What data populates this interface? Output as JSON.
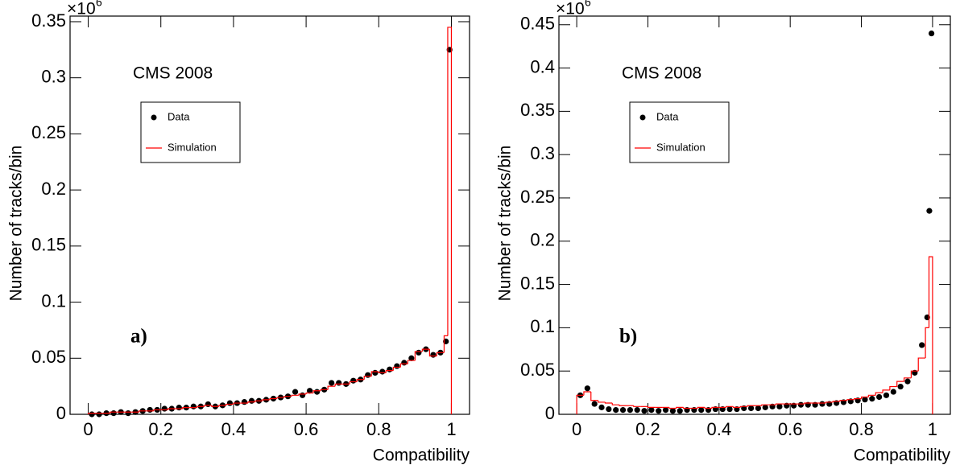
{
  "chart_data": [
    {
      "type": "histogram",
      "annotation": "CMS 2008",
      "panel_label": "a)",
      "y_label": "Number of tracks/bin",
      "x_label": "Compatibility",
      "y_multiplier": "×10",
      "y_multiplier_exponent": "6",
      "xlim": [
        -0.05,
        1.05
      ],
      "xticks": [
        0,
        0.2,
        0.4,
        0.6,
        0.8,
        1
      ],
      "ylim": [
        0,
        0.355
      ],
      "yticks": [
        0,
        0.05,
        0.1,
        0.15,
        0.2,
        0.25,
        0.3,
        0.35
      ],
      "series": [
        {
          "name": "Data",
          "color": "#000000",
          "x": [
            0.01,
            0.03,
            0.05,
            0.07,
            0.09,
            0.11,
            0.13,
            0.15,
            0.17,
            0.19,
            0.21,
            0.23,
            0.25,
            0.27,
            0.29,
            0.31,
            0.33,
            0.35,
            0.37,
            0.39,
            0.41,
            0.43,
            0.45,
            0.47,
            0.49,
            0.51,
            0.53,
            0.55,
            0.57,
            0.59,
            0.61,
            0.63,
            0.65,
            0.67,
            0.69,
            0.71,
            0.73,
            0.75,
            0.77,
            0.79,
            0.81,
            0.83,
            0.85,
            0.87,
            0.89,
            0.91,
            0.93,
            0.95,
            0.97,
            0.985,
            0.995
          ],
          "values": [
            0,
            0,
            0.001,
            0.001,
            0.002,
            0.001,
            0.002,
            0.003,
            0.004,
            0.004,
            0.005,
            0.005,
            0.006,
            0.006,
            0.007,
            0.007,
            0.009,
            0.007,
            0.008,
            0.01,
            0.01,
            0.011,
            0.012,
            0.012,
            0.013,
            0.014,
            0.015,
            0.016,
            0.02,
            0.017,
            0.021,
            0.02,
            0.022,
            0.028,
            0.028,
            0.027,
            0.03,
            0.031,
            0.035,
            0.037,
            0.038,
            0.04,
            0.043,
            0.046,
            0.05,
            0.055,
            0.058,
            0.053,
            0.055,
            0.065,
            0.325
          ]
        },
        {
          "name": "Simulation",
          "color": "#ff0000",
          "bins": [
            0,
            0.02,
            0.04,
            0.06,
            0.08,
            0.1,
            0.12,
            0.14,
            0.16,
            0.18,
            0.2,
            0.22,
            0.24,
            0.26,
            0.28,
            0.3,
            0.32,
            0.34,
            0.36,
            0.38,
            0.4,
            0.42,
            0.44,
            0.46,
            0.48,
            0.5,
            0.52,
            0.54,
            0.56,
            0.58,
            0.6,
            0.62,
            0.64,
            0.66,
            0.68,
            0.7,
            0.72,
            0.74,
            0.76,
            0.78,
            0.8,
            0.82,
            0.84,
            0.86,
            0.88,
            0.9,
            0.92,
            0.94,
            0.96,
            0.98,
            0.99,
            1
          ],
          "values": [
            0.001,
            0.001,
            0.001,
            0.002,
            0.002,
            0.002,
            0.002,
            0.003,
            0.003,
            0.004,
            0.004,
            0.005,
            0.005,
            0.006,
            0.006,
            0.007,
            0.008,
            0.007,
            0.008,
            0.009,
            0.01,
            0.01,
            0.011,
            0.012,
            0.013,
            0.014,
            0.015,
            0.016,
            0.017,
            0.018,
            0.019,
            0.021,
            0.022,
            0.025,
            0.027,
            0.027,
            0.029,
            0.031,
            0.034,
            0.038,
            0.037,
            0.039,
            0.042,
            0.045,
            0.048,
            0.056,
            0.058,
            0.052,
            0.055,
            0.07,
            0.345
          ]
        }
      ]
    },
    {
      "type": "histogram",
      "annotation": "CMS 2008",
      "panel_label": "b)",
      "y_label": "Number of tracks/bin",
      "x_label": "Compatibility",
      "y_multiplier": "×10",
      "y_multiplier_exponent": "6",
      "xlim": [
        -0.05,
        1.05
      ],
      "xticks": [
        0,
        0.2,
        0.4,
        0.6,
        0.8,
        1
      ],
      "ylim": [
        0,
        0.46
      ],
      "yticks": [
        0,
        0.05,
        0.1,
        0.15,
        0.2,
        0.25,
        0.3,
        0.35,
        0.4,
        0.45
      ],
      "series": [
        {
          "name": "Data",
          "color": "#000000",
          "x": [
            0.01,
            0.03,
            0.05,
            0.07,
            0.09,
            0.11,
            0.13,
            0.15,
            0.17,
            0.19,
            0.21,
            0.23,
            0.25,
            0.27,
            0.29,
            0.31,
            0.33,
            0.35,
            0.37,
            0.39,
            0.41,
            0.43,
            0.45,
            0.47,
            0.49,
            0.51,
            0.53,
            0.55,
            0.57,
            0.59,
            0.61,
            0.63,
            0.65,
            0.67,
            0.69,
            0.71,
            0.73,
            0.75,
            0.77,
            0.79,
            0.81,
            0.83,
            0.85,
            0.87,
            0.89,
            0.91,
            0.93,
            0.95,
            0.97,
            0.985,
            0.991,
            0.997
          ],
          "values": [
            0.022,
            0.03,
            0.012,
            0.008,
            0.006,
            0.005,
            0.005,
            0.005,
            0.005,
            0.004,
            0.005,
            0.004,
            0.005,
            0.004,
            0.004,
            0.005,
            0.005,
            0.005,
            0.005,
            0.006,
            0.006,
            0.006,
            0.006,
            0.007,
            0.007,
            0.007,
            0.008,
            0.009,
            0.009,
            0.01,
            0.01,
            0.011,
            0.011,
            0.011,
            0.012,
            0.012,
            0.013,
            0.014,
            0.015,
            0.016,
            0.017,
            0.018,
            0.02,
            0.022,
            0.026,
            0.032,
            0.038,
            0.048,
            0.08,
            0.112,
            0.235,
            0.44
          ]
        },
        {
          "name": "Simulation",
          "color": "#ff0000",
          "bins": [
            0,
            0.02,
            0.04,
            0.06,
            0.08,
            0.1,
            0.12,
            0.14,
            0.16,
            0.18,
            0.2,
            0.22,
            0.24,
            0.26,
            0.28,
            0.3,
            0.32,
            0.34,
            0.36,
            0.38,
            0.4,
            0.42,
            0.44,
            0.46,
            0.48,
            0.5,
            0.52,
            0.54,
            0.56,
            0.58,
            0.6,
            0.62,
            0.64,
            0.66,
            0.68,
            0.7,
            0.72,
            0.74,
            0.76,
            0.78,
            0.8,
            0.82,
            0.84,
            0.86,
            0.88,
            0.9,
            0.92,
            0.94,
            0.96,
            0.98,
            0.99,
            1
          ],
          "values": [
            0.022,
            0.026,
            0.016,
            0.014,
            0.013,
            0.011,
            0.01,
            0.01,
            0.009,
            0.009,
            0.008,
            0.008,
            0.008,
            0.007,
            0.008,
            0.007,
            0.007,
            0.008,
            0.007,
            0.008,
            0.008,
            0.009,
            0.008,
            0.009,
            0.01,
            0.01,
            0.011,
            0.011,
            0.012,
            0.012,
            0.012,
            0.012,
            0.013,
            0.013,
            0.013,
            0.014,
            0.015,
            0.016,
            0.017,
            0.018,
            0.02,
            0.022,
            0.025,
            0.028,
            0.032,
            0.038,
            0.042,
            0.05,
            0.065,
            0.1,
            0.182
          ]
        }
      ]
    }
  ]
}
